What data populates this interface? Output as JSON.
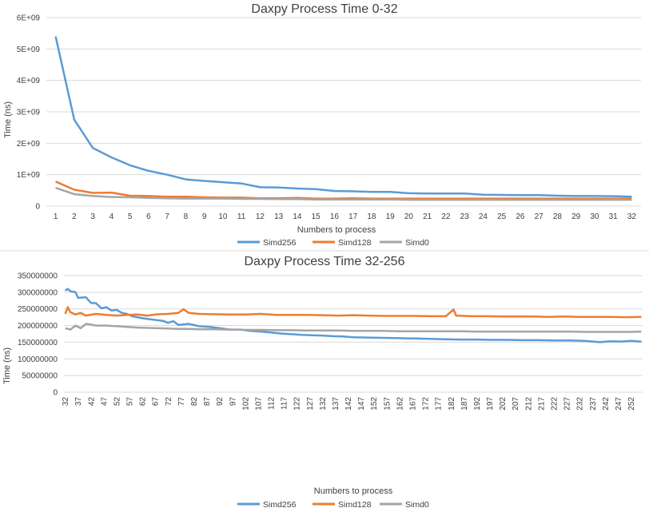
{
  "colors": {
    "Simd256": "#5b9bd5",
    "Simd128": "#ed7d31",
    "Simd0": "#a5a5a5",
    "grid": "#d9d9d9"
  },
  "chart_data": [
    {
      "type": "line",
      "title": "Daxpy Process Time 0-32",
      "xlabel": "Numbers to process",
      "ylabel": "Time (ns)",
      "ylim": [
        0,
        6000000000
      ],
      "y_tick_labels": [
        "0",
        "1E+09",
        "2E+09",
        "3E+09",
        "4E+09",
        "5E+09",
        "6E+09"
      ],
      "categories": [
        "1",
        "2",
        "3",
        "4",
        "5",
        "6",
        "7",
        "8",
        "9",
        "10",
        "11",
        "12",
        "13",
        "14",
        "15",
        "16",
        "17",
        "18",
        "19",
        "20",
        "21",
        "22",
        "23",
        "24",
        "25",
        "26",
        "27",
        "28",
        "29",
        "30",
        "31",
        "32"
      ],
      "grid": true,
      "legend": "bottom",
      "series": [
        {
          "name": "Simd256",
          "values": [
            5400000000,
            2750000000,
            1850000000,
            1550000000,
            1300000000,
            1120000000,
            1000000000,
            850000000,
            800000000,
            760000000,
            720000000,
            600000000,
            590000000,
            560000000,
            540000000,
            480000000,
            470000000,
            450000000,
            450000000,
            410000000,
            400000000,
            400000000,
            400000000,
            360000000,
            355000000,
            350000000,
            350000000,
            330000000,
            320000000,
            320000000,
            315000000,
            300000000
          ]
        },
        {
          "name": "Simd128",
          "values": [
            780000000,
            520000000,
            420000000,
            430000000,
            330000000,
            320000000,
            300000000,
            300000000,
            280000000,
            270000000,
            270000000,
            250000000,
            250000000,
            260000000,
            240000000,
            240000000,
            250000000,
            240000000,
            240000000,
            240000000,
            240000000,
            240000000,
            240000000,
            240000000,
            240000000,
            240000000,
            240000000,
            240000000,
            240000000,
            240000000,
            240000000,
            240000000
          ]
        },
        {
          "name": "Simd0",
          "values": [
            580000000,
            380000000,
            320000000,
            290000000,
            280000000,
            260000000,
            250000000,
            240000000,
            240000000,
            240000000,
            230000000,
            230000000,
            220000000,
            220000000,
            210000000,
            210000000,
            210000000,
            210000000,
            210000000,
            200000000,
            200000000,
            200000000,
            200000000,
            200000000,
            200000000,
            200000000,
            200000000,
            200000000,
            200000000,
            200000000,
            200000000,
            200000000
          ]
        }
      ]
    },
    {
      "type": "line",
      "title": "Daxpy Process Time 32-256",
      "xlabel": "Numbers to process",
      "ylabel": "Time (ns)",
      "ylim": [
        0,
        350000000
      ],
      "y_tick_labels": [
        "0",
        "50000000",
        "100000000",
        "150000000",
        "200000000",
        "250000000",
        "300000000",
        "350000000"
      ],
      "x_start": 32,
      "x_end": 256,
      "x_tick_labels": [
        "32",
        "37",
        "42",
        "47",
        "52",
        "57",
        "62",
        "67",
        "72",
        "77",
        "82",
        "87",
        "92",
        "97",
        "102",
        "107",
        "112",
        "117",
        "122",
        "127",
        "132",
        "137",
        "142",
        "147",
        "152",
        "157",
        "162",
        "167",
        "172",
        "177",
        "182",
        "187",
        "192",
        "197",
        "202",
        "207",
        "212",
        "217",
        "222",
        "227",
        "232",
        "237",
        "242",
        "247",
        "252"
      ],
      "grid": true,
      "legend": "bottom",
      "series": [
        {
          "name": "Simd256",
          "points": [
            [
              32,
              305000000
            ],
            [
              33,
              310000000
            ],
            [
              34,
              303000000
            ],
            [
              36,
              300000000
            ],
            [
              37,
              283000000
            ],
            [
              40,
              285000000
            ],
            [
              42,
              268000000
            ],
            [
              44,
              267000000
            ],
            [
              46,
              252000000
            ],
            [
              48,
              255000000
            ],
            [
              50,
              245000000
            ],
            [
              52,
              247000000
            ],
            [
              54,
              238000000
            ],
            [
              56,
              235000000
            ],
            [
              58,
              228000000
            ],
            [
              62,
              222000000
            ],
            [
              66,
              218000000
            ],
            [
              70,
              214000000
            ],
            [
              72,
              208000000
            ],
            [
              74,
              213000000
            ],
            [
              76,
              202000000
            ],
            [
              80,
              205000000
            ],
            [
              84,
              198000000
            ],
            [
              88,
              196000000
            ],
            [
              92,
              192000000
            ],
            [
              96,
              188000000
            ],
            [
              100,
              188000000
            ],
            [
              104,
              184000000
            ],
            [
              108,
              182000000
            ],
            [
              112,
              179000000
            ],
            [
              116,
              176000000
            ],
            [
              120,
              174000000
            ],
            [
              124,
              172000000
            ],
            [
              128,
              171000000
            ],
            [
              132,
              170000000
            ],
            [
              136,
              168000000
            ],
            [
              140,
              167000000
            ],
            [
              144,
              165000000
            ],
            [
              150,
              164000000
            ],
            [
              156,
              163000000
            ],
            [
              162,
              162000000
            ],
            [
              168,
              161000000
            ],
            [
              174,
              160000000
            ],
            [
              180,
              159000000
            ],
            [
              186,
              158000000
            ],
            [
              192,
              158000000
            ],
            [
              198,
              157000000
            ],
            [
              204,
              157000000
            ],
            [
              210,
              156000000
            ],
            [
              216,
              156000000
            ],
            [
              222,
              155000000
            ],
            [
              228,
              155000000
            ],
            [
              234,
              154000000
            ],
            [
              240,
              150000000
            ],
            [
              244,
              153000000
            ],
            [
              248,
              152000000
            ],
            [
              252,
              154000000
            ],
            [
              256,
              152000000
            ]
          ]
        },
        {
          "name": "Simd128",
          "points": [
            [
              32,
              235000000
            ],
            [
              33,
              255000000
            ],
            [
              34,
              240000000
            ],
            [
              36,
              233000000
            ],
            [
              38,
              238000000
            ],
            [
              40,
              230000000
            ],
            [
              44,
              235000000
            ],
            [
              48,
              232000000
            ],
            [
              52,
              230000000
            ],
            [
              56,
              232000000
            ],
            [
              60,
              233000000
            ],
            [
              64,
              230000000
            ],
            [
              68,
              234000000
            ],
            [
              72,
              235000000
            ],
            [
              76,
              238000000
            ],
            [
              78,
              249000000
            ],
            [
              80,
              238000000
            ],
            [
              84,
              235000000
            ],
            [
              90,
              234000000
            ],
            [
              96,
              233000000
            ],
            [
              102,
              233000000
            ],
            [
              108,
              235000000
            ],
            [
              114,
              232000000
            ],
            [
              120,
              232000000
            ],
            [
              126,
              232000000
            ],
            [
              132,
              231000000
            ],
            [
              138,
              230000000
            ],
            [
              144,
              231000000
            ],
            [
              150,
              230000000
            ],
            [
              156,
              229000000
            ],
            [
              162,
              229000000
            ],
            [
              168,
              229000000
            ],
            [
              174,
              228000000
            ],
            [
              180,
              228000000
            ],
            [
              183,
              248000000
            ],
            [
              184,
              230000000
            ],
            [
              190,
              228000000
            ],
            [
              196,
              228000000
            ],
            [
              202,
              227000000
            ],
            [
              208,
              227000000
            ],
            [
              214,
              227000000
            ],
            [
              220,
              226000000
            ],
            [
              226,
              227000000
            ],
            [
              232,
              226000000
            ],
            [
              238,
              226000000
            ],
            [
              244,
              226000000
            ],
            [
              250,
              225000000
            ],
            [
              256,
              226000000
            ]
          ]
        },
        {
          "name": "Simd0",
          "points": [
            [
              32,
              192000000
            ],
            [
              34,
              188000000
            ],
            [
              36,
              200000000
            ],
            [
              38,
              192000000
            ],
            [
              40,
              205000000
            ],
            [
              42,
              203000000
            ],
            [
              44,
              200000000
            ],
            [
              48,
              200000000
            ],
            [
              52,
              198000000
            ],
            [
              56,
              196000000
            ],
            [
              60,
              194000000
            ],
            [
              64,
              193000000
            ],
            [
              68,
              192000000
            ],
            [
              72,
              191000000
            ],
            [
              76,
              190000000
            ],
            [
              80,
              190000000
            ],
            [
              84,
              189000000
            ],
            [
              90,
              189000000
            ],
            [
              96,
              188000000
            ],
            [
              102,
              187000000
            ],
            [
              108,
              187000000
            ],
            [
              114,
              186000000
            ],
            [
              120,
              186000000
            ],
            [
              126,
              185000000
            ],
            [
              132,
              185000000
            ],
            [
              138,
              185000000
            ],
            [
              144,
              184000000
            ],
            [
              150,
              184000000
            ],
            [
              156,
              184000000
            ],
            [
              162,
              183000000
            ],
            [
              168,
              183000000
            ],
            [
              174,
              183000000
            ],
            [
              180,
              183000000
            ],
            [
              186,
              183000000
            ],
            [
              192,
              182000000
            ],
            [
              198,
              182000000
            ],
            [
              204,
              182000000
            ],
            [
              210,
              182000000
            ],
            [
              216,
              182000000
            ],
            [
              222,
              182000000
            ],
            [
              228,
              182000000
            ],
            [
              234,
              181000000
            ],
            [
              240,
              181000000
            ],
            [
              246,
              181000000
            ],
            [
              252,
              181000000
            ],
            [
              256,
              182000000
            ]
          ]
        }
      ]
    }
  ]
}
